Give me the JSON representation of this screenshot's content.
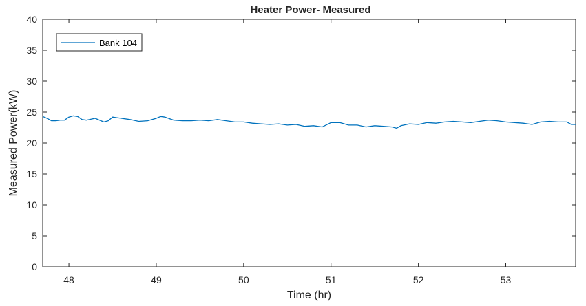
{
  "chart_data": {
    "type": "line",
    "title": "Heater Power- Measured",
    "xlabel": "Time (hr)",
    "ylabel": "Measured Power(kW)",
    "xlim": [
      47.7,
      53.8
    ],
    "ylim": [
      0,
      40
    ],
    "xticks": [
      48,
      49,
      50,
      51,
      52,
      53
    ],
    "yticks": [
      0,
      5,
      10,
      15,
      20,
      25,
      30,
      35,
      40
    ],
    "grid": false,
    "legend_position": "top-left",
    "series": [
      {
        "name": "Bank 104",
        "color": "#0072BD",
        "x": [
          47.7,
          47.75,
          47.8,
          47.85,
          47.9,
          47.95,
          48.0,
          48.05,
          48.1,
          48.15,
          48.2,
          48.3,
          48.4,
          48.45,
          48.5,
          48.55,
          48.6,
          48.7,
          48.8,
          48.9,
          49.0,
          49.05,
          49.1,
          49.2,
          49.3,
          49.4,
          49.5,
          49.6,
          49.7,
          49.8,
          49.9,
          50.0,
          50.1,
          50.2,
          50.3,
          50.4,
          50.5,
          50.6,
          50.7,
          50.8,
          50.9,
          51.0,
          51.1,
          51.2,
          51.3,
          51.4,
          51.5,
          51.6,
          51.7,
          51.75,
          51.8,
          51.9,
          52.0,
          52.1,
          52.2,
          52.3,
          52.4,
          52.5,
          52.6,
          52.7,
          52.8,
          52.9,
          53.0,
          53.1,
          53.2,
          53.3,
          53.4,
          53.5,
          53.6,
          53.7,
          53.75,
          53.8
        ],
        "y": [
          24.3,
          24.0,
          23.6,
          23.6,
          23.7,
          23.7,
          24.2,
          24.4,
          24.3,
          23.8,
          23.7,
          24.0,
          23.4,
          23.6,
          24.2,
          24.1,
          24.0,
          23.8,
          23.5,
          23.6,
          24.0,
          24.3,
          24.2,
          23.7,
          23.6,
          23.6,
          23.7,
          23.6,
          23.8,
          23.6,
          23.4,
          23.4,
          23.2,
          23.1,
          23.0,
          23.1,
          22.9,
          23.0,
          22.7,
          22.8,
          22.6,
          23.3,
          23.3,
          22.9,
          22.9,
          22.6,
          22.8,
          22.7,
          22.6,
          22.4,
          22.8,
          23.1,
          23.0,
          23.3,
          23.2,
          23.4,
          23.5,
          23.4,
          23.3,
          23.5,
          23.7,
          23.6,
          23.4,
          23.3,
          23.2,
          23.0,
          23.4,
          23.5,
          23.4,
          23.4,
          23.0,
          23.0
        ]
      }
    ]
  }
}
